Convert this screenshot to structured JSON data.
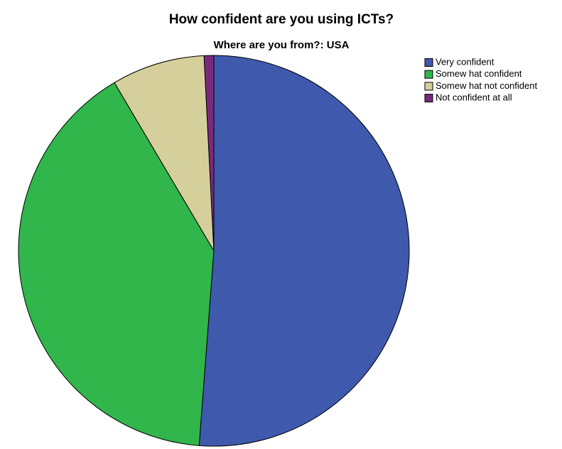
{
  "chart_data": {
    "type": "pie",
    "title": "How confident are you using ICTs?",
    "subtitle": "Where are you from?: USA",
    "categories": [
      "Very confident",
      "Somew hat confident",
      "Somew hat not confident",
      "Not confident at all"
    ],
    "values": [
      51.2,
      40.3,
      7.7,
      0.8
    ],
    "colors": [
      "#3f59ad",
      "#30b64a",
      "#d5cf9b",
      "#7a2a7c"
    ]
  }
}
